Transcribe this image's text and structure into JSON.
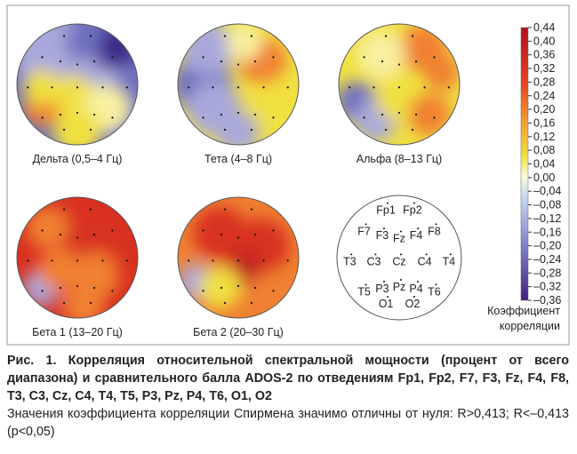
{
  "figure": {
    "maps": [
      {
        "label": "Дельта (0,5–4 Гц)"
      },
      {
        "label": "Тета (4–8 Гц)"
      },
      {
        "label": "Альфа (8–13 Гц)"
      },
      {
        "label": "Бета 1 (13–20 Гц)"
      },
      {
        "label": "Бета 2 (20–30 Гц)"
      }
    ],
    "electrodes": [
      "Fp1",
      "Fp2",
      "F7",
      "F3",
      "Fz",
      "F4",
      "F8",
      "T3",
      "C3",
      "Cz",
      "C4",
      "T4",
      "T5",
      "P3",
      "Pz",
      "P4",
      "T6",
      "O1",
      "O2"
    ],
    "colorbar": {
      "ticks": [
        "0,44",
        "0,40",
        "0,36",
        "0,32",
        "0,28",
        "0,24",
        "0,20",
        "0,16",
        "0,12",
        "0,08",
        "0,04",
        "0,00",
        "–0,04",
        "–0,08",
        "–0,12",
        "–0,16",
        "–0,20",
        "–0,24",
        "–0,28",
        "–0,32",
        "–0,36"
      ],
      "title_line1": "Коэффициент",
      "title_line2": "корреляции"
    }
  },
  "caption": {
    "title": "Рис. 1. Корреляция относительной спектральной мощности (процент от всего диапазона) и сравнительного балла ADOS-2 по отведениям Fp1, Fp2, F7, F3, Fz, F4, F8, T3, C3, Cz, C4, T4, T5, P3, Pz, P4, T6, O1, O2",
    "note": "Значения коэффициента корреляции Спирмена значимо отличны от нуля: R>0,413; R<–0,413 (p<0,05)"
  }
}
